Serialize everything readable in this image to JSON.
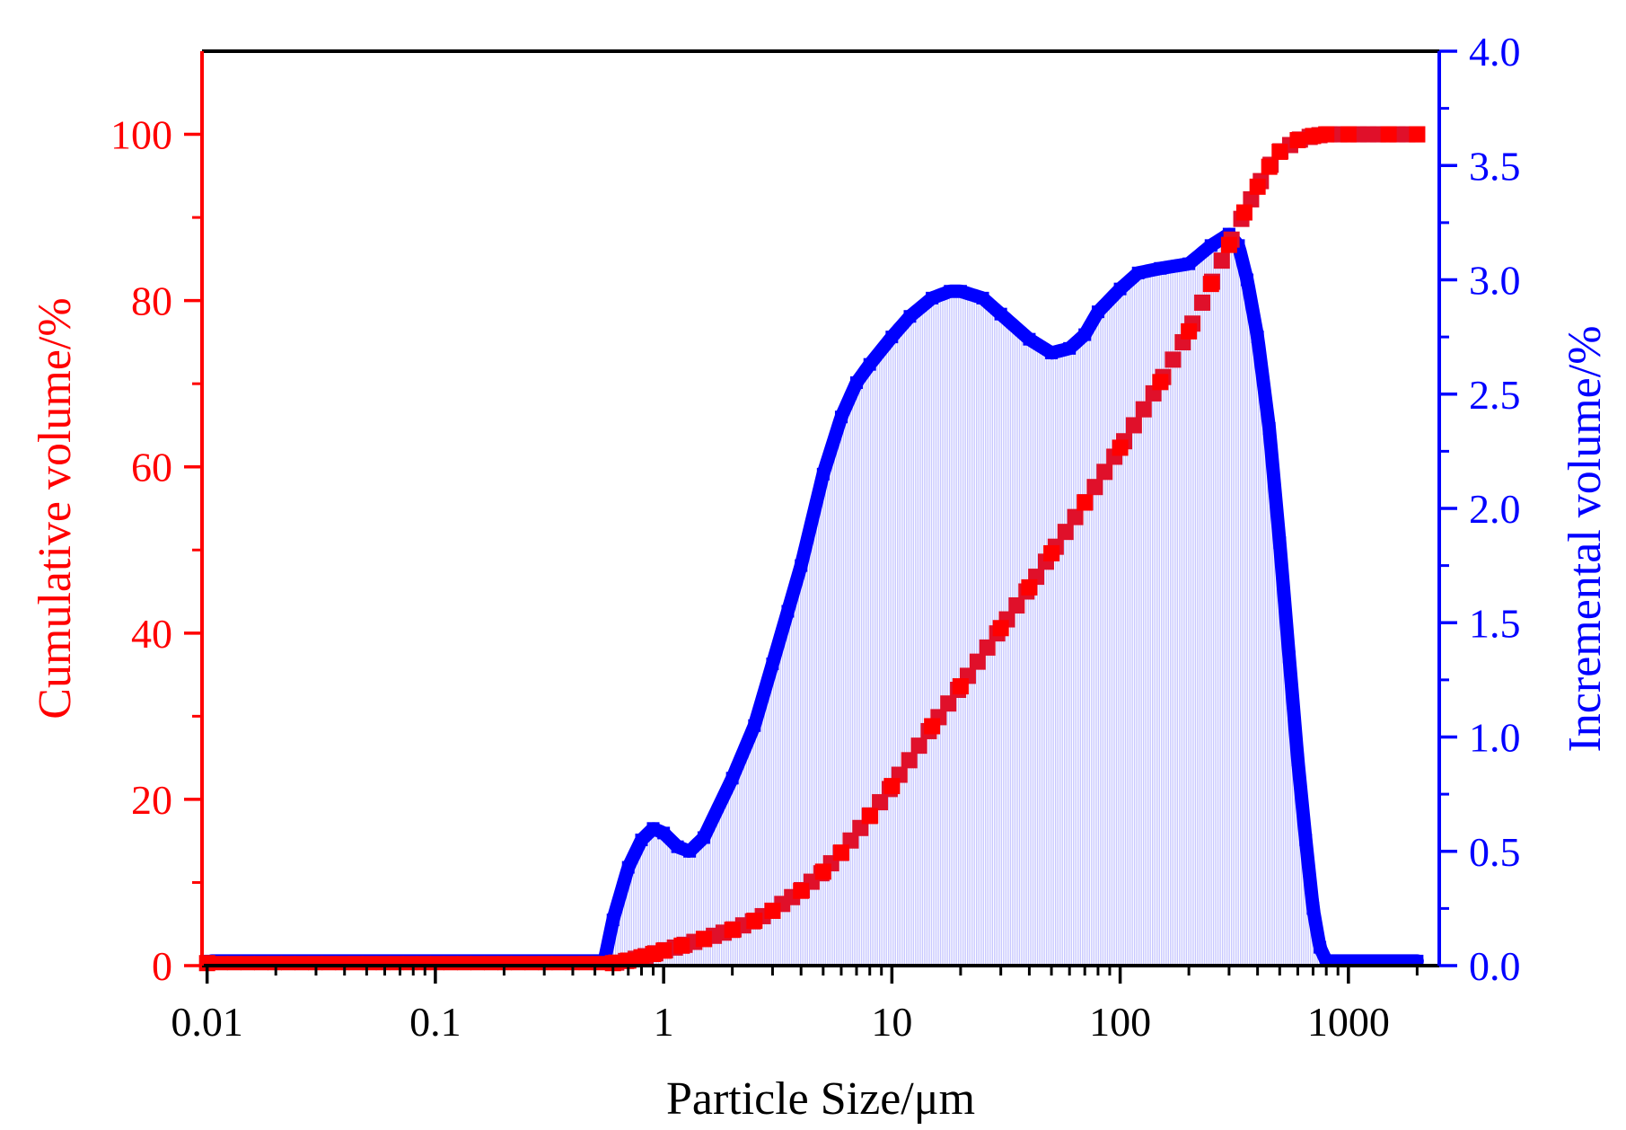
{
  "chart_data": {
    "type": "line",
    "title": "",
    "xlabel": "Particle Size/μm",
    "ylabel_left": "Cumulative volume/%",
    "ylabel_right": "Incremental volume/%",
    "x_scale": "log",
    "xlim": [
      0.0095,
      2500
    ],
    "ylim_left": [
      0,
      110
    ],
    "ylim_right": [
      0,
      4.0
    ],
    "x_ticks": [
      {
        "value": 0.01,
        "label": "0.01"
      },
      {
        "value": 0.1,
        "label": "0.1"
      },
      {
        "value": 1,
        "label": "1"
      },
      {
        "value": 10,
        "label": "10"
      },
      {
        "value": 100,
        "label": "100"
      },
      {
        "value": 1000,
        "label": "1000"
      }
    ],
    "y_left_ticks": [
      {
        "value": 0,
        "label": "0"
      },
      {
        "value": 20,
        "label": "20"
      },
      {
        "value": 40,
        "label": "40"
      },
      {
        "value": 60,
        "label": "60"
      },
      {
        "value": 80,
        "label": "80"
      },
      {
        "value": 100,
        "label": "100"
      }
    ],
    "y_right_ticks": [
      {
        "value": 0.0,
        "label": "0.0"
      },
      {
        "value": 0.5,
        "label": "0.5"
      },
      {
        "value": 1.0,
        "label": "1.0"
      },
      {
        "value": 1.5,
        "label": "1.5"
      },
      {
        "value": 2.0,
        "label": "2.0"
      },
      {
        "value": 2.5,
        "label": "2.5"
      },
      {
        "value": 3.0,
        "label": "3.0"
      },
      {
        "value": 3.5,
        "label": "3.5"
      },
      {
        "value": 4.0,
        "label": "4.0"
      }
    ],
    "colors": {
      "cumulative": "#ff0000",
      "cumulative_marker": "#e0102a",
      "incremental": "#0000ff",
      "fill": "#3a3aff",
      "frame": "#000000"
    },
    "series": [
      {
        "name": "Cumulative volume",
        "axis": "left",
        "style": "square-markers",
        "points": [
          [
            0.01,
            0.3
          ],
          [
            0.6,
            0.3
          ],
          [
            0.7,
            0.6
          ],
          [
            0.8,
            1.0
          ],
          [
            0.9,
            1.4
          ],
          [
            1.0,
            1.8
          ],
          [
            1.2,
            2.4
          ],
          [
            1.5,
            3.2
          ],
          [
            2.0,
            4.3
          ],
          [
            2.5,
            5.4
          ],
          [
            3.0,
            6.6
          ],
          [
            4.0,
            9.0
          ],
          [
            5.0,
            11.3
          ],
          [
            6.0,
            13.6
          ],
          [
            8.0,
            18.0
          ],
          [
            10.0,
            21.6
          ],
          [
            15.0,
            28.8
          ],
          [
            20.0,
            33.6
          ],
          [
            30.0,
            40.6
          ],
          [
            40.0,
            45.5
          ],
          [
            50.0,
            49.6
          ],
          [
            70.0,
            55.7
          ],
          [
            100.0,
            62.3
          ],
          [
            150.0,
            70.2
          ],
          [
            200.0,
            76.3
          ],
          [
            250.0,
            82.0
          ],
          [
            300.0,
            86.7
          ],
          [
            350.0,
            90.6
          ],
          [
            400.0,
            93.7
          ],
          [
            450.0,
            96.1
          ],
          [
            500.0,
            97.9
          ],
          [
            600.0,
            99.3
          ],
          [
            700.0,
            99.8
          ],
          [
            800.0,
            100.0
          ],
          [
            1000.0,
            100.0
          ],
          [
            1500.0,
            100.0
          ],
          [
            2000.0,
            100.0
          ]
        ]
      },
      {
        "name": "Incremental volume",
        "axis": "right",
        "style": "thick-line-filled",
        "points": [
          [
            0.01,
            0.02
          ],
          [
            0.55,
            0.02
          ],
          [
            0.6,
            0.2
          ],
          [
            0.7,
            0.43
          ],
          [
            0.8,
            0.55
          ],
          [
            0.9,
            0.6
          ],
          [
            1.0,
            0.58
          ],
          [
            1.15,
            0.52
          ],
          [
            1.3,
            0.5
          ],
          [
            1.5,
            0.56
          ],
          [
            2.0,
            0.82
          ],
          [
            2.5,
            1.05
          ],
          [
            3.0,
            1.32
          ],
          [
            3.5,
            1.55
          ],
          [
            4.0,
            1.75
          ],
          [
            5.0,
            2.15
          ],
          [
            6.0,
            2.4
          ],
          [
            7.0,
            2.55
          ],
          [
            8.0,
            2.63
          ],
          [
            10.0,
            2.75
          ],
          [
            12.0,
            2.84
          ],
          [
            15.0,
            2.92
          ],
          [
            18.0,
            2.95
          ],
          [
            20.0,
            2.95
          ],
          [
            25.0,
            2.92
          ],
          [
            30.0,
            2.85
          ],
          [
            40.0,
            2.74
          ],
          [
            50.0,
            2.68
          ],
          [
            60.0,
            2.7
          ],
          [
            70.0,
            2.76
          ],
          [
            80.0,
            2.86
          ],
          [
            100.0,
            2.96
          ],
          [
            120.0,
            3.03
          ],
          [
            150.0,
            3.05
          ],
          [
            200.0,
            3.07
          ],
          [
            250.0,
            3.15
          ],
          [
            300.0,
            3.2
          ],
          [
            330.0,
            3.15
          ],
          [
            360.0,
            3.0
          ],
          [
            400.0,
            2.75
          ],
          [
            450.0,
            2.35
          ],
          [
            500.0,
            1.85
          ],
          [
            550.0,
            1.35
          ],
          [
            600.0,
            0.9
          ],
          [
            650.0,
            0.55
          ],
          [
            700.0,
            0.25
          ],
          [
            750.0,
            0.08
          ],
          [
            800.0,
            0.02
          ],
          [
            1000.0,
            0.02
          ],
          [
            2000.0,
            0.02
          ]
        ]
      }
    ]
  }
}
